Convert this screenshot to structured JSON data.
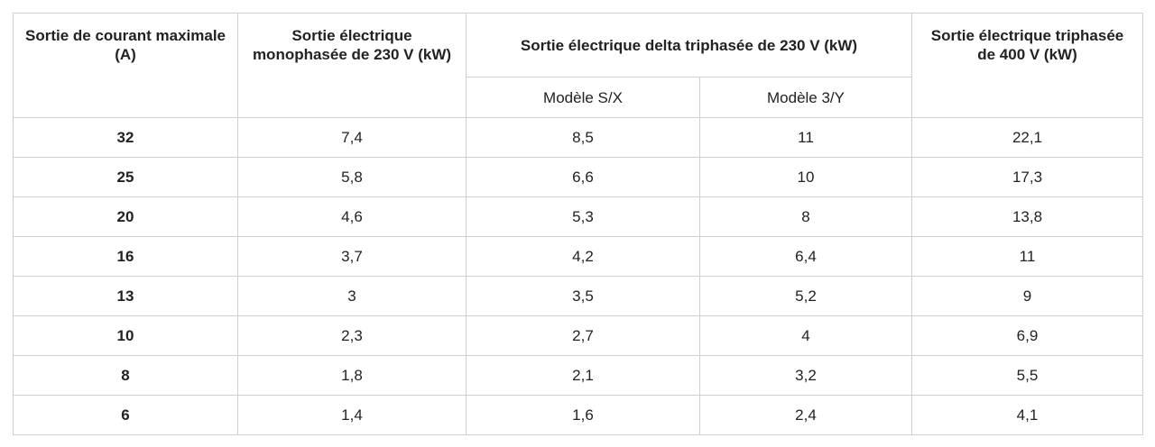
{
  "table": {
    "header": {
      "col1": "Sortie de courant maximale (A)",
      "col2": "Sortie électrique monophasée de 230 V (kW)",
      "group": "Sortie électrique delta triphasée de 230 V (kW)",
      "sub1": "Modèle S/X",
      "sub2": "Modèle 3/Y",
      "col5": "Sortie électrique triphasée de 400 V (kW)"
    },
    "rows": [
      [
        "32",
        "7,4",
        "8,5",
        "11",
        "22,1"
      ],
      [
        "25",
        "5,8",
        "6,6",
        "10",
        "17,3"
      ],
      [
        "20",
        "4,6",
        "5,3",
        "8",
        "13,8"
      ],
      [
        "16",
        "3,7",
        "4,2",
        "6,4",
        "11"
      ],
      [
        "13",
        "3",
        "3,5",
        "5,2",
        "9"
      ],
      [
        "10",
        "2,3",
        "2,7",
        "4",
        "6,9"
      ],
      [
        "8",
        "1,8",
        "2,1",
        "3,2",
        "5,5"
      ],
      [
        "6",
        "1,4",
        "1,6",
        "2,4",
        "4,1"
      ]
    ]
  }
}
